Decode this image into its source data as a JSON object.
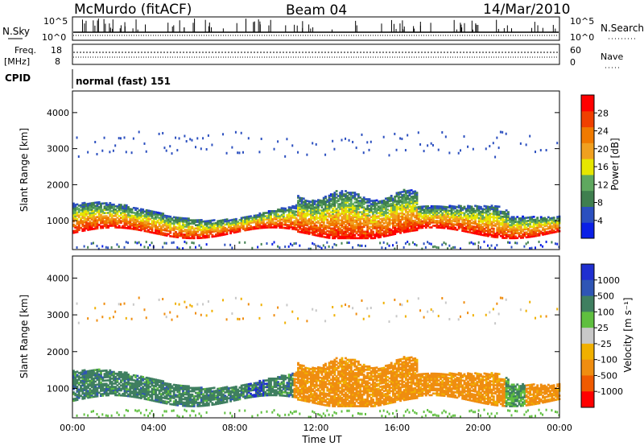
{
  "header": {
    "station": "McMurdo (fitACF)",
    "beam": "Beam 04",
    "date": "14/Mar/2010"
  },
  "noise_panel": {
    "left_label": "N.Sky",
    "right_label": "N.Search",
    "left_ticks": [
      "10^5",
      "10^0"
    ],
    "right_ticks": [
      "10^5",
      "10^0"
    ]
  },
  "freq_panel": {
    "left_label_1": "Freq.",
    "left_label_2": "[MHz]",
    "right_label": "Nave",
    "left_ticks": [
      "18",
      "8"
    ],
    "right_ticks": [
      "60",
      "0"
    ]
  },
  "cpid_panel": {
    "label": "CPID",
    "value": "normal (fast) 151"
  },
  "colors": {
    "power_scale": [
      "#0a1fe6",
      "#2b4fbf",
      "#3f7f4f",
      "#5fa85f",
      "#e6e600",
      "#f0a020",
      "#f07a00",
      "#f04000",
      "#ff0000"
    ],
    "velocity_scale": [
      "#1f2fd0",
      "#2f55b5",
      "#3f7f60",
      "#5fbf3f",
      "#c8c8c8",
      "#f0b000",
      "#ef8d10",
      "#ef5a00",
      "#ff0000"
    ]
  },
  "chart_data": [
    {
      "type": "heatmap",
      "name": "Power",
      "xlabel": "",
      "ylabel": "Slant Range [km]",
      "xlim": [
        "00:00",
        "00:00"
      ],
      "ylim": [
        200,
        4600
      ],
      "yticks": [
        "1000",
        "2000",
        "3000",
        "4000"
      ],
      "colorbar": {
        "label": "Power [dB]",
        "ticks": [
          "4",
          "8",
          "12",
          "16",
          "20",
          "24",
          "28"
        ],
        "range": [
          0,
          30
        ]
      }
    },
    {
      "type": "heatmap",
      "name": "Velocity",
      "xlabel": "Time UT",
      "ylabel": "Slant Range [km]",
      "xticks": [
        "00:00",
        "04:00",
        "08:00",
        "12:00",
        "16:00",
        "20:00",
        "00:00"
      ],
      "ylim": [
        200,
        4600
      ],
      "yticks": [
        "1000",
        "2000",
        "3000",
        "4000"
      ],
      "colorbar": {
        "label": "Velocity [m s⁻¹]",
        "ticks": [
          "1000",
          "500",
          "100",
          "25",
          "-25",
          "-100",
          "-500",
          "-1000"
        ]
      }
    }
  ]
}
